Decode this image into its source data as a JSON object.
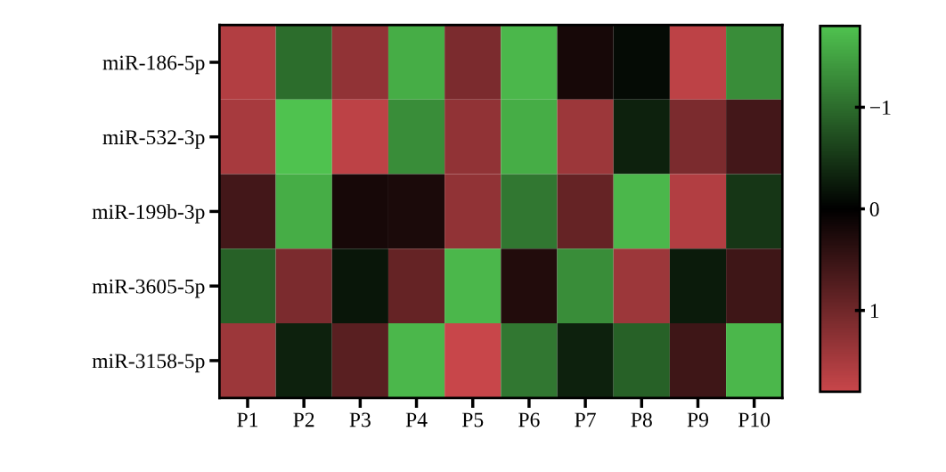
{
  "chart_data": {
    "type": "heatmap",
    "categories": [
      "P1",
      "P2",
      "P3",
      "P4",
      "P5",
      "P6",
      "P7",
      "P8",
      "P9",
      "P10"
    ],
    "y_categories": [
      "miR-186-5p",
      "miR-532-3p",
      "miR-199b-3p",
      "miR-3605-5p",
      "miR-3158-5p"
    ],
    "cells": [
      [
        1.6,
        -1.0,
        1.3,
        -1.6,
        1.1,
        -1.7,
        0.2,
        -0.1,
        1.7,
        -1.3
      ],
      [
        1.5,
        -1.8,
        1.7,
        -1.3,
        1.3,
        -1.6,
        1.4,
        -0.3,
        1.1,
        0.6
      ],
      [
        0.6,
        -1.6,
        0.2,
        0.25,
        1.3,
        -1.1,
        0.9,
        -1.7,
        1.6,
        -0.5
      ],
      [
        -0.9,
        1.1,
        -0.2,
        0.9,
        -1.7,
        0.3,
        -1.3,
        1.4,
        -0.25,
        0.55
      ],
      [
        1.4,
        -0.3,
        0.8,
        -1.7,
        1.8,
        -1.1,
        -0.3,
        -0.9,
        0.55,
        -1.7
      ]
    ],
    "clim": [
      1.8,
      -1.8
    ],
    "cticks": [
      {
        "value": -1,
        "label": "−1"
      },
      0,
      1
    ],
    "grid": false
  }
}
